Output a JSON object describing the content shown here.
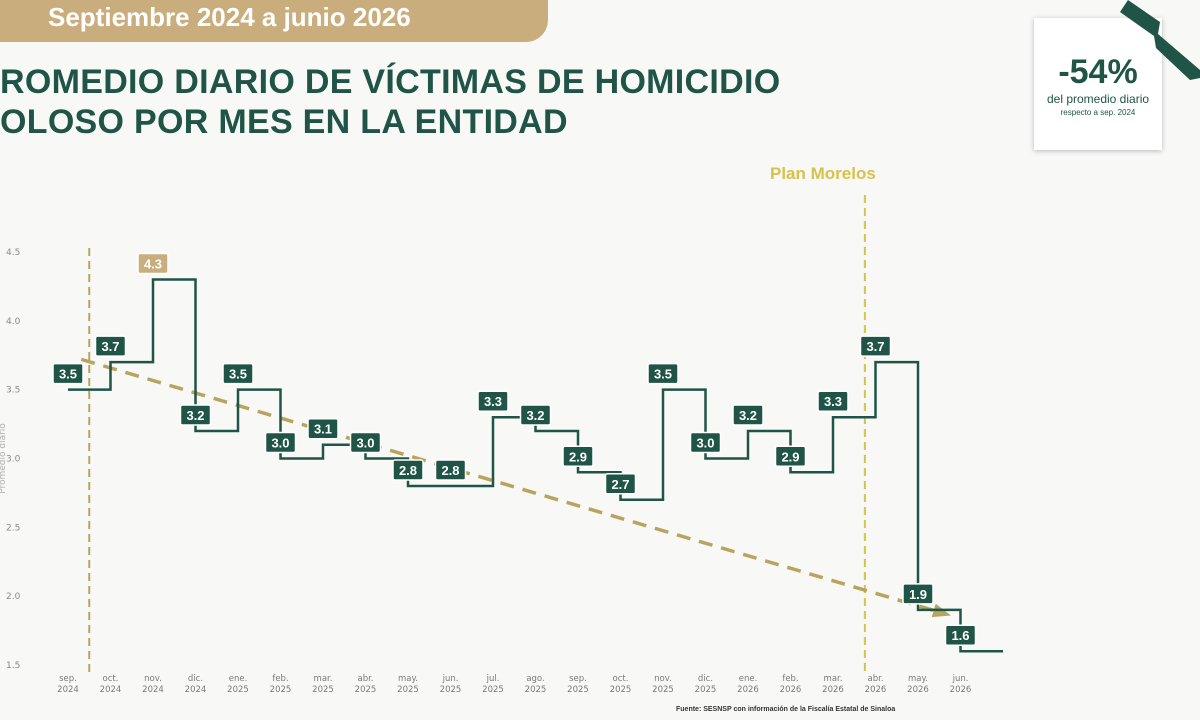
{
  "header": {
    "banner": "Septiembre 2024 a junio 2026",
    "title_line1": "ROMEDIO DIARIO DE VÍCTIMAS DE HOMICIDIO",
    "title_line2": "OLOSO POR MES EN LA ENTIDAD"
  },
  "badge": {
    "value": "-54%",
    "line1": "del promedio diario",
    "line2": "respecto a sep. 2024"
  },
  "source": "Fuente: SESNSP con información de la Fiscalía Estatal de Sinaloa",
  "colors": {
    "primary": "#1f5446",
    "highlight": "#c9ad7c",
    "trend": "#b9a45f",
    "plan": "#d7c24a"
  },
  "chart_data": {
    "type": "line",
    "step": true,
    "categories": [
      [
        "sep.",
        "2024"
      ],
      [
        "oct.",
        "2024"
      ],
      [
        "nov.",
        "2024"
      ],
      [
        "dic.",
        "2024"
      ],
      [
        "ene.",
        "2025"
      ],
      [
        "feb.",
        "2025"
      ],
      [
        "mar.",
        "2025"
      ],
      [
        "abr.",
        "2025"
      ],
      [
        "may.",
        "2025"
      ],
      [
        "jun.",
        "2025"
      ],
      [
        "jul.",
        "2025"
      ],
      [
        "ago.",
        "2025"
      ],
      [
        "sep.",
        "2025"
      ],
      [
        "oct.",
        "2025"
      ],
      [
        "nov.",
        "2025"
      ],
      [
        "dic.",
        "2025"
      ],
      [
        "ene.",
        "2026"
      ],
      [
        "feb.",
        "2026"
      ],
      [
        "mar.",
        "2026"
      ],
      [
        "abr.",
        "2026"
      ],
      [
        "may.",
        "2026"
      ],
      [
        "jun.",
        "2026"
      ]
    ],
    "values": [
      3.5,
      3.7,
      4.3,
      3.2,
      3.5,
      3.0,
      3.1,
      3.0,
      2.8,
      2.8,
      3.3,
      3.2,
      2.9,
      2.7,
      3.5,
      3.0,
      3.2,
      2.9,
      3.3,
      3.7,
      1.9,
      1.6
    ],
    "highlight_index": 2,
    "yticks": [
      1.5,
      2.0,
      2.5,
      3.0,
      3.5,
      4.0,
      4.5
    ],
    "ylim": [
      1.5,
      4.5
    ],
    "ylabel": "Promedio diario",
    "trend": {
      "from_value": 3.72,
      "to_value": 1.93,
      "from_index": 0.5,
      "to_index": 20.5
    },
    "reference_lines": [
      {
        "at_index": 0.5,
        "label": ""
      },
      {
        "at_index": 18.75,
        "label": "Plan Morelos"
      }
    ]
  }
}
